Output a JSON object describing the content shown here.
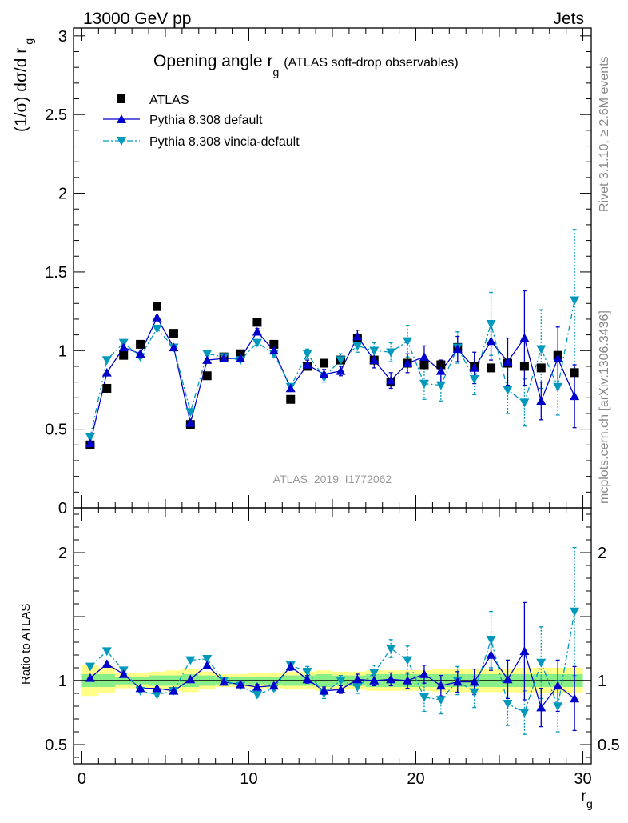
{
  "header": {
    "left": "13000 GeV pp",
    "right": "Jets"
  },
  "side_labels": {
    "rivet": "Rivet 3.1.10, ≥ 2.6M events",
    "mcplots": "mcplots.cern.ch [arXiv:1306.3436]"
  },
  "analysis_id": "ATLAS_2019_I1772062",
  "chart_data": [
    {
      "type": "scatter",
      "title": "Opening angle r",
      "title_sub": "g",
      "title_suffix": "(ATLAS soft-drop observables)",
      "ylabel": "(1/σ) dσ/d r",
      "ylabel_sub": "g",
      "xlim": [
        -0.5,
        30.5
      ],
      "ylim": [
        0,
        3.05
      ],
      "yticks": [
        0.5,
        1,
        1.5,
        2,
        2.5,
        3
      ],
      "ytick_labels": [
        "0.5",
        "1",
        "1.5",
        "2",
        "2.5",
        "3"
      ],
      "y_bottom_label": "0",
      "x": [
        0.5,
        1.5,
        2.5,
        3.5,
        4.5,
        5.5,
        6.5,
        7.5,
        8.5,
        9.5,
        10.5,
        11.5,
        12.5,
        13.5,
        14.5,
        15.5,
        16.5,
        17.5,
        18.5,
        19.5,
        20.5,
        21.5,
        22.5,
        23.5,
        24.5,
        25.5,
        26.5,
        27.5,
        28.5,
        29.5
      ],
      "series": [
        {
          "name": "ATLAS",
          "color": "#000000",
          "marker": "square",
          "values": [
            0.4,
            0.76,
            0.97,
            1.04,
            1.28,
            1.11,
            0.53,
            0.84,
            0.96,
            0.98,
            1.18,
            1.04,
            0.69,
            0.9,
            0.92,
            0.94,
            1.08,
            0.94,
            0.8,
            0.92,
            0.91,
            0.91,
            1.02,
            0.9,
            0.89,
            0.92,
            0.9,
            0.89,
            0.97,
            0.86
          ]
        },
        {
          "name": "Pythia 8.308 default",
          "color": "#0000cc",
          "marker": "triangle-up",
          "line": "solid",
          "values": [
            0.41,
            0.86,
            1.02,
            0.98,
            1.21,
            1.02,
            0.54,
            0.94,
            0.95,
            0.95,
            1.12,
            1.0,
            0.76,
            0.91,
            0.85,
            0.87,
            1.09,
            0.94,
            0.81,
            0.92,
            0.96,
            0.87,
            1.01,
            0.89,
            1.06,
            0.93,
            1.08,
            0.68,
            0.95,
            0.71
          ],
          "errors": [
            0.01,
            0.01,
            0.01,
            0.01,
            0.01,
            0.01,
            0.01,
            0.01,
            0.01,
            0.01,
            0.02,
            0.02,
            0.02,
            0.03,
            0.03,
            0.03,
            0.04,
            0.05,
            0.05,
            0.06,
            0.07,
            0.07,
            0.08,
            0.1,
            0.12,
            0.15,
            0.3,
            0.12,
            0.2,
            0.2
          ]
        },
        {
          "name": "Pythia 8.308 vincia-default",
          "color": "#0099bb",
          "marker": "triangle-down",
          "line": "dashdot",
          "values": [
            0.45,
            0.94,
            1.05,
            0.96,
            1.14,
            1.02,
            0.61,
            0.98,
            0.96,
            0.94,
            1.05,
            0.98,
            0.77,
            0.98,
            0.83,
            0.94,
            1.03,
            1.0,
            0.99,
            1.06,
            0.79,
            0.78,
            1.02,
            0.82,
            1.17,
            0.75,
            0.67,
            1.01,
            0.77,
            1.32
          ],
          "errors": [
            0.01,
            0.01,
            0.01,
            0.01,
            0.01,
            0.01,
            0.01,
            0.01,
            0.01,
            0.01,
            0.02,
            0.02,
            0.02,
            0.03,
            0.03,
            0.04,
            0.04,
            0.05,
            0.06,
            0.1,
            0.1,
            0.1,
            0.1,
            0.1,
            0.2,
            0.15,
            0.15,
            0.25,
            0.18,
            0.45
          ]
        }
      ]
    },
    {
      "type": "scatter",
      "ylabel": "Ratio to ATLAS",
      "xlabel": "r",
      "xlabel_sub": "g",
      "xlim": [
        -0.5,
        30.5
      ],
      "ylim": [
        0.35,
        2.35
      ],
      "yticks": [
        0.5,
        1,
        2
      ],
      "ytick_labels": [
        "0.5",
        "1",
        "2"
      ],
      "xticks": [
        0,
        10,
        20,
        30
      ],
      "xtick_labels": [
        "0",
        "10",
        "20",
        "30"
      ],
      "band_inner_color": "#88ee88",
      "band_outer_color": "#ffff88",
      "band_inner": [
        0.05,
        0.05,
        0.03,
        0.03,
        0.04,
        0.04,
        0.05,
        0.04,
        0.03,
        0.03,
        0.03,
        0.03,
        0.04,
        0.04,
        0.05,
        0.04,
        0.04,
        0.05,
        0.05,
        0.05,
        0.05,
        0.05,
        0.05,
        0.05,
        0.05,
        0.05,
        0.05,
        0.05,
        0.05,
        0.05
      ],
      "band_outer": [
        0.12,
        0.1,
        0.06,
        0.06,
        0.07,
        0.08,
        0.09,
        0.07,
        0.05,
        0.05,
        0.06,
        0.06,
        0.07,
        0.07,
        0.08,
        0.07,
        0.07,
        0.08,
        0.08,
        0.08,
        0.08,
        0.09,
        0.09,
        0.09,
        0.09,
        0.09,
        0.1,
        0.1,
        0.1,
        0.1
      ],
      "series": [
        {
          "name": "Pythia 8.308 default",
          "values": [
            1.02,
            1.13,
            1.05,
            0.94,
            0.94,
            0.92,
            1.01,
            1.12,
            0.99,
            0.97,
            0.95,
            0.96,
            1.11,
            1.01,
            0.92,
            0.93,
            1.01,
            1.0,
            1.01,
            1.0,
            1.05,
            0.96,
            0.99,
            0.99,
            1.2,
            1.01,
            1.23,
            0.79,
            0.96,
            0.86
          ],
          "errors": [
            0.01,
            0.01,
            0.01,
            0.01,
            0.01,
            0.01,
            0.01,
            0.01,
            0.01,
            0.01,
            0.02,
            0.02,
            0.03,
            0.03,
            0.03,
            0.03,
            0.04,
            0.04,
            0.05,
            0.06,
            0.07,
            0.08,
            0.08,
            0.1,
            0.12,
            0.15,
            0.38,
            0.15,
            0.2,
            0.25
          ]
        },
        {
          "name": "Pythia 8.308 vincia-default",
          "values": [
            1.11,
            1.23,
            1.08,
            0.92,
            0.89,
            0.92,
            1.16,
            1.17,
            1.0,
            0.96,
            0.89,
            0.94,
            1.12,
            1.07,
            0.9,
            1.0,
            0.95,
            1.06,
            1.25,
            1.16,
            0.87,
            0.85,
            1.0,
            0.91,
            1.32,
            0.82,
            0.75,
            1.14,
            0.8,
            1.54
          ],
          "errors": [
            0.01,
            0.01,
            0.01,
            0.01,
            0.01,
            0.01,
            0.01,
            0.01,
            0.01,
            0.01,
            0.02,
            0.02,
            0.03,
            0.04,
            0.04,
            0.04,
            0.05,
            0.06,
            0.07,
            0.11,
            0.11,
            0.11,
            0.11,
            0.12,
            0.22,
            0.17,
            0.17,
            0.28,
            0.2,
            0.5
          ]
        }
      ]
    }
  ]
}
